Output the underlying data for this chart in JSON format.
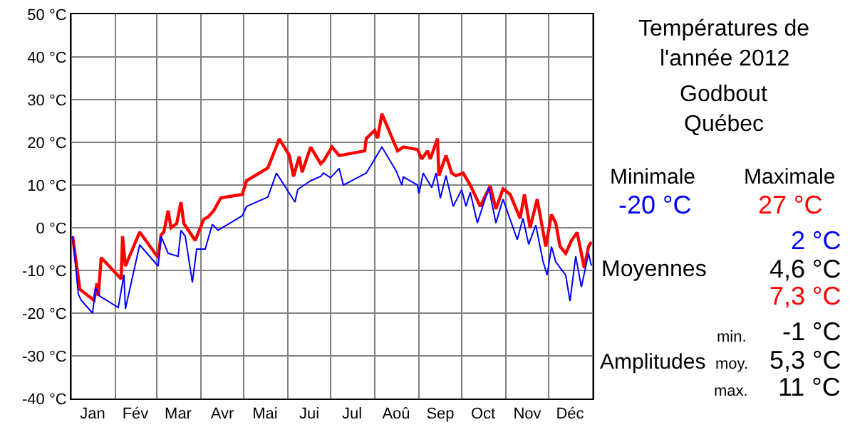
{
  "chart_data": {
    "type": "line",
    "title": "Températures de l'année 2012",
    "subtitle": "Godbout Québec",
    "xlim": [
      "2012-01-01",
      "2013-01-01"
    ],
    "xticks": [
      {
        "value": "2012-01-01",
        "label": null
      },
      {
        "value": "2012-01-16",
        "label": "Jan"
      },
      {
        "value": "2012-02-01",
        "label": null
      },
      {
        "value": "2012-02-15",
        "label": "Fév"
      },
      {
        "value": "2012-03-01",
        "label": null
      },
      {
        "value": "2012-03-16",
        "label": "Mar"
      },
      {
        "value": "2012-04-01",
        "label": null
      },
      {
        "value": "2012-04-16",
        "label": "Avr"
      },
      {
        "value": "2012-05-01",
        "label": null
      },
      {
        "value": "2012-05-16",
        "label": "Mai"
      },
      {
        "value": "2012-06-01",
        "label": null
      },
      {
        "value": "2012-06-16",
        "label": "Jui"
      },
      {
        "value": "2012-07-01",
        "label": null
      },
      {
        "value": "2012-07-16",
        "label": "Jul"
      },
      {
        "value": "2012-08-01",
        "label": null
      },
      {
        "value": "2012-08-16",
        "label": "Aoû"
      },
      {
        "value": "2012-09-01",
        "label": null
      },
      {
        "value": "2012-09-16",
        "label": "Sep"
      },
      {
        "value": "2012-10-01",
        "label": null
      },
      {
        "value": "2012-10-16",
        "label": "Oct"
      },
      {
        "value": "2012-11-01",
        "label": null
      },
      {
        "value": "2012-11-16",
        "label": "Nov"
      },
      {
        "value": "2012-12-01",
        "label": null
      },
      {
        "value": "2012-12-16",
        "label": "Déc"
      },
      {
        "value": "2013-01-01",
        "label": null
      }
    ],
    "ylim": [
      -40,
      50
    ],
    "yticks": [
      {
        "value": -40,
        "label": "-40 °C"
      },
      {
        "value": -30,
        "label": "-30 °C"
      },
      {
        "value": -20,
        "label": "-20 °C"
      },
      {
        "value": -10,
        "label": "-10 °C"
      },
      {
        "value": 0,
        "label": "0 °C"
      },
      {
        "value": 10,
        "label": "10 °C"
      },
      {
        "value": 20,
        "label": "20 °C"
      },
      {
        "value": 30,
        "label": "30 °C"
      },
      {
        "value": 40,
        "label": "40 °C"
      },
      {
        "value": 50,
        "label": "50 °C"
      }
    ],
    "grid": true,
    "marker": "none",
    "line_style": "solid",
    "series": [
      {
        "color": "#ff0000",
        "x": [
          "2012-01-02",
          "2012-01-07",
          "2012-01-17",
          "2012-01-19",
          "2012-01-20",
          "2012-01-22",
          "2012-02-05",
          "2012-02-06",
          "2012-02-08",
          "2012-02-18",
          "2012-03-02",
          "2012-03-04",
          "2012-03-06",
          "2012-03-09",
          "2012-03-11",
          "2012-03-15",
          "2012-03-18",
          "2012-03-20",
          "2012-03-28",
          "2012-04-03",
          "2012-04-06",
          "2012-04-10",
          "2012-04-15",
          "2012-04-30",
          "2012-05-03",
          "2012-05-18",
          "2012-05-26",
          "2012-06-02",
          "2012-06-05",
          "2012-06-09",
          "2012-06-11",
          "2012-06-17",
          "2012-06-24",
          "2012-06-26",
          "2012-07-02",
          "2012-07-07",
          "2012-07-25",
          "2012-07-26",
          "2012-08-01",
          "2012-08-03",
          "2012-08-06",
          "2012-08-17",
          "2012-08-21",
          "2012-08-31",
          "2012-09-03",
          "2012-09-07",
          "2012-09-09",
          "2012-09-14",
          "2012-09-15",
          "2012-09-20",
          "2012-09-24",
          "2012-09-27",
          "2012-10-02",
          "2012-10-07",
          "2012-10-14",
          "2012-10-21",
          "2012-10-25",
          "2012-10-30",
          "2012-11-04",
          "2012-11-11",
          "2012-11-14",
          "2012-11-18",
          "2012-11-23",
          "2012-11-29",
          "2012-12-03",
          "2012-12-06",
          "2012-12-09",
          "2012-12-13",
          "2012-12-17",
          "2012-12-21",
          "2012-12-26",
          "2012-12-29",
          "2012-12-31"
        ],
        "values": [
          -2,
          -14.4,
          -17,
          -13,
          -16,
          -7,
          -12,
          -2,
          -9,
          -1,
          -7,
          -1.7,
          -1,
          4,
          0,
          1,
          6,
          1,
          -3,
          2,
          2.5,
          4,
          7,
          7.8,
          11,
          14,
          20.8,
          17,
          12,
          16.7,
          13,
          18.9,
          15,
          15.6,
          18.9,
          16.9,
          18,
          20.9,
          22.8,
          21,
          26.7,
          18,
          18.9,
          18.3,
          16.1,
          18,
          16.1,
          20.9,
          12.2,
          16.9,
          12.8,
          12.2,
          12.8,
          10,
          5,
          9.8,
          4.4,
          9.1,
          7.8,
          2.2,
          7.8,
          0,
          6.7,
          -4.4,
          3.1,
          1.1,
          -4.4,
          -6,
          -3,
          -1.1,
          -9.4,
          -4.4,
          -3.3
        ]
      },
      {
        "color": "#0000ff",
        "x": [
          "2012-01-02",
          "2012-01-06",
          "2012-01-08",
          "2012-01-16",
          "2012-01-18",
          "2012-01-21",
          "2012-02-03",
          "2012-02-07",
          "2012-02-08",
          "2012-02-18",
          "2012-03-02",
          "2012-03-04",
          "2012-03-09",
          "2012-03-16",
          "2012-03-18",
          "2012-03-21",
          "2012-03-26",
          "2012-03-29",
          "2012-04-04",
          "2012-04-09",
          "2012-04-13",
          "2012-04-30",
          "2012-05-03",
          "2012-05-18",
          "2012-05-24",
          "2012-06-06",
          "2012-06-08",
          "2012-06-17",
          "2012-06-24",
          "2012-06-26",
          "2012-07-01",
          "2012-07-07",
          "2012-07-10",
          "2012-07-26",
          "2012-08-01",
          "2012-08-06",
          "2012-08-16",
          "2012-08-20",
          "2012-08-21",
          "2012-08-31",
          "2012-09-01",
          "2012-09-04",
          "2012-09-10",
          "2012-09-13",
          "2012-09-16",
          "2012-09-20",
          "2012-09-25",
          "2012-10-01",
          "2012-10-04",
          "2012-10-07",
          "2012-10-12",
          "2012-10-20",
          "2012-10-25",
          "2012-10-30",
          "2012-11-09",
          "2012-11-13",
          "2012-11-17",
          "2012-11-22",
          "2012-11-27",
          "2012-11-30",
          "2012-12-03",
          "2012-12-06",
          "2012-12-13",
          "2012-12-16",
          "2012-12-20",
          "2012-12-24",
          "2012-12-29",
          "2012-12-31"
        ],
        "values": [
          -2,
          -15.6,
          -17,
          -20,
          -14,
          -16,
          -18.7,
          -11,
          -19,
          -4,
          -9,
          -2,
          -6,
          -6.7,
          -0.6,
          -2,
          -12.8,
          -5,
          -5,
          0.8,
          -0.6,
          2.8,
          5,
          7.2,
          12.8,
          6,
          9,
          11,
          12,
          12.8,
          11.7,
          13.9,
          10,
          12.8,
          16.1,
          18.9,
          13.3,
          10,
          11.9,
          10,
          8,
          12.8,
          9.4,
          12.8,
          6.9,
          12.2,
          5,
          8.9,
          5,
          8.3,
          1.1,
          9.4,
          1.1,
          6.7,
          -2.8,
          2.2,
          -3.9,
          0.6,
          -7.8,
          -11.1,
          -4.4,
          -8,
          -11.1,
          -17.2,
          -6.7,
          -13.9,
          -6,
          -8.9
        ]
      }
    ],
    "annotations": [
      "Minimale",
      "-20 °C",
      "Maximale",
      "27 °C",
      "2 °C",
      "Moyennes",
      "4,6 °C",
      "7,3 °C",
      "min.",
      "-1 °C",
      "Amplitudes",
      "moy.",
      "5,3 °C",
      "max.",
      "11 °C"
    ]
  }
}
